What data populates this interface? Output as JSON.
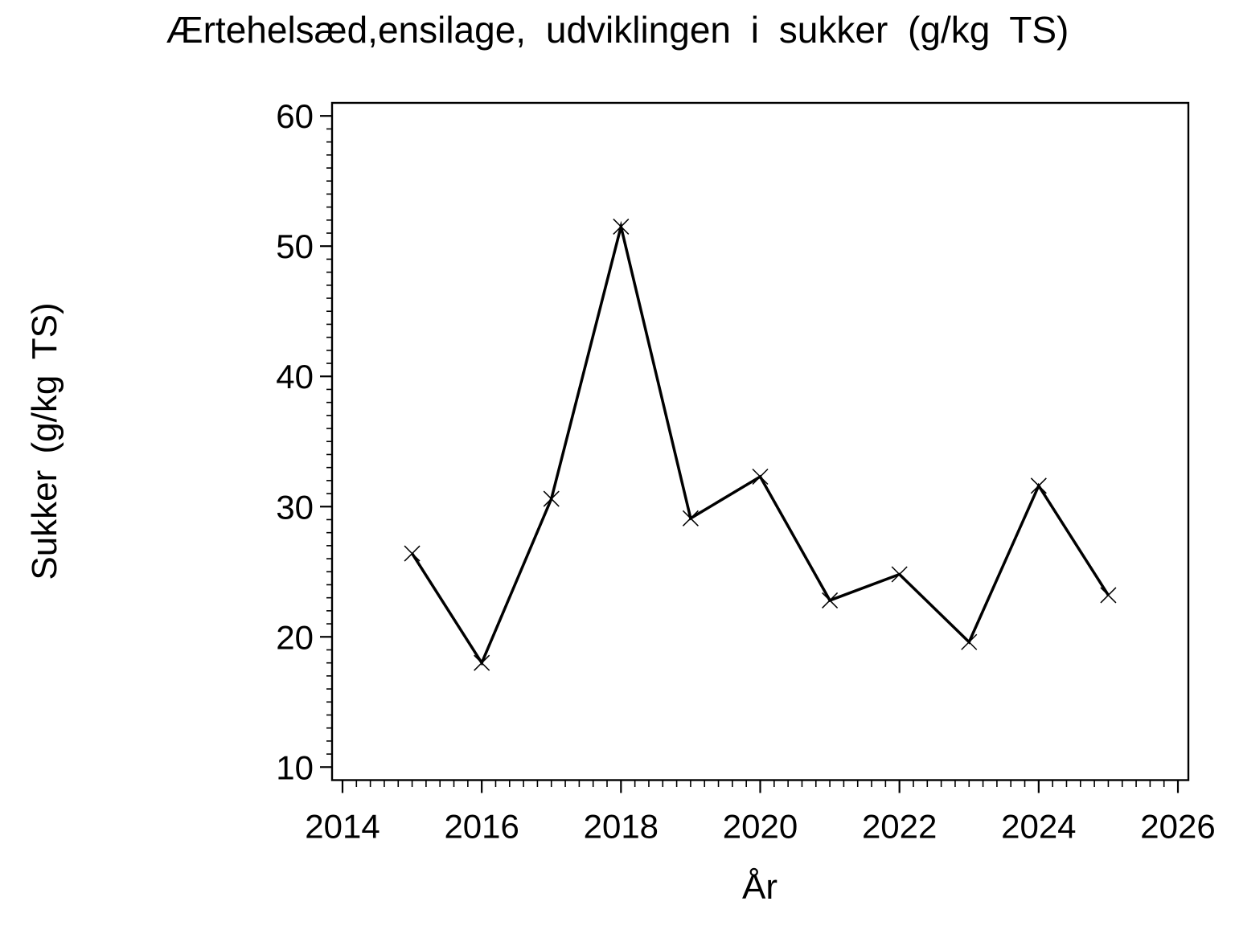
{
  "page": {
    "background": "#ffffff",
    "foreground": "#000000"
  },
  "chart_data": {
    "type": "line",
    "title": "Ærtehelsæd,ensilage, udviklingen i sukker (g/kg TS)",
    "xlabel": "År",
    "ylabel": "Sukker (g/kg TS)",
    "x": [
      2015,
      2016,
      2017,
      2018,
      2019,
      2020,
      2021,
      2022,
      2023,
      2024,
      2025
    ],
    "values": [
      26.4,
      18.0,
      30.6,
      51.5,
      29.1,
      32.3,
      22.8,
      24.8,
      19.6,
      31.6,
      23.2
    ],
    "xticks": [
      2014,
      2016,
      2018,
      2020,
      2022,
      2024,
      2026
    ],
    "yticks": [
      10,
      20,
      30,
      40,
      50,
      60
    ],
    "xlim": [
      2013.85,
      2026.15
    ],
    "ylim": [
      9,
      61
    ],
    "minor_x_step": 0.2,
    "minor_y_step": 1,
    "grid": false,
    "legend": false,
    "frame": true,
    "marker": "x",
    "line_color": "#000000",
    "background": "#ffffff"
  }
}
